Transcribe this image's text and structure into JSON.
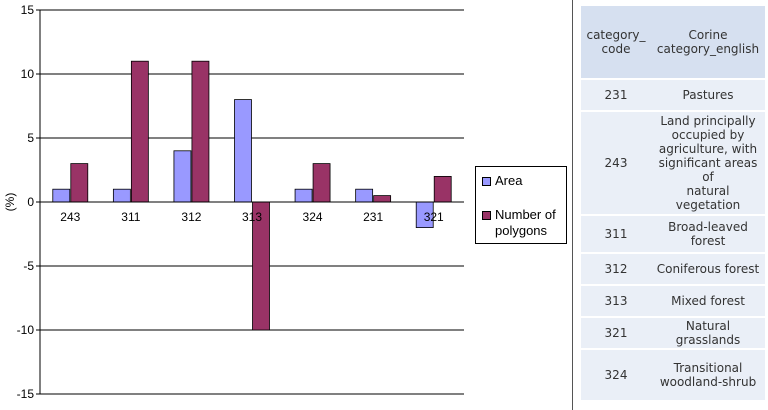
{
  "chart_data": {
    "type": "bar",
    "categories": [
      "243",
      "311",
      "312",
      "313",
      "324",
      "231",
      "321"
    ],
    "series": [
      {
        "name": "Area",
        "values": [
          1,
          1,
          4,
          8,
          1,
          1,
          -2
        ],
        "color": "#9999ff"
      },
      {
        "name": "Number of polygons",
        "values": [
          3,
          11,
          11,
          -10,
          3,
          0.5,
          2
        ],
        "color": "#993366"
      }
    ],
    "ylabel": "(%)",
    "ylim": [
      -15,
      15
    ],
    "yticks": [
      15,
      10,
      5,
      0,
      -5,
      -10,
      -15
    ],
    "grid": true,
    "legend_position": "right"
  },
  "legend": {
    "area": "Area",
    "polygons_line1": "Number of",
    "polygons_line2": "polygons"
  },
  "table": {
    "headers": {
      "code_line1": "category_",
      "code_line2": "code",
      "name_line1": "Corine",
      "name_line2": "category_english"
    },
    "rows": [
      {
        "code": "231",
        "lines": [
          "Pastures"
        ]
      },
      {
        "code": "243",
        "lines": [
          "Land principally",
          "occupied by",
          "agriculture, with",
          "significant areas of",
          "natural vegetation"
        ]
      },
      {
        "code": "311",
        "lines": [
          "Broad-leaved",
          "forest"
        ]
      },
      {
        "code": "312",
        "lines": [
          "Coniferous forest"
        ]
      },
      {
        "code": "313",
        "lines": [
          "Mixed forest"
        ]
      },
      {
        "code": "321",
        "lines": [
          "Natural grasslands"
        ]
      },
      {
        "code": "324",
        "lines": [
          "Transitional",
          "woodland-shrub"
        ]
      }
    ]
  }
}
